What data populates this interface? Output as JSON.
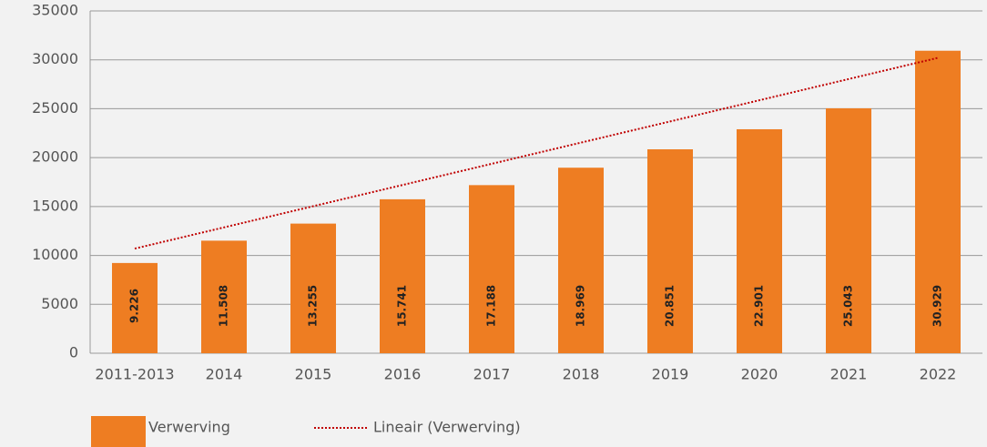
{
  "chart_data": {
    "type": "bar",
    "categories": [
      "2011-2013",
      "2014",
      "2015",
      "2016",
      "2017",
      "2018",
      "2019",
      "2020",
      "2021",
      "2022"
    ],
    "series": [
      {
        "name": "Verwerving",
        "color": "#ee7d22",
        "values": [
          9226,
          11508,
          13255,
          15741,
          17188,
          18969,
          20851,
          22901,
          25043,
          30929
        ],
        "value_labels": [
          "9.226",
          "11.508",
          "13.255",
          "15.741",
          "17.188",
          "18.969",
          "20.851",
          "22.901",
          "25.043",
          "30.929"
        ]
      }
    ],
    "trendline": {
      "name": "Lineair (Verwerving)",
      "color": "#c00000",
      "values": [
        10700,
        30200
      ]
    },
    "ylim": [
      0,
      35000
    ],
    "yticks": [
      0,
      5000,
      10000,
      15000,
      20000,
      25000,
      30000,
      35000
    ],
    "grid": true
  }
}
